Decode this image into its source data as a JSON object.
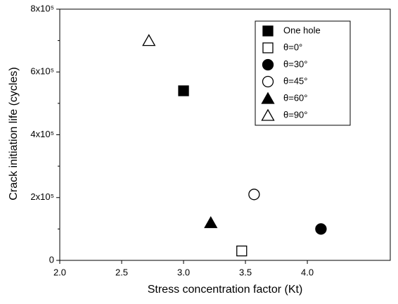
{
  "chart_data": {
    "type": "scatter",
    "x_label": "Stress concentration factor (Kt)",
    "y_label": "Crack initiation life (cycles)",
    "xlim": [
      2.0,
      4.67
    ],
    "xticks": [
      {
        "value": 2,
        "label": "2.0"
      },
      2.5,
      {
        "value": 3,
        "label": "3.0"
      },
      3.5,
      {
        "value": 4,
        "label": "4.0"
      }
    ],
    "ylim": [
      0,
      800000
    ],
    "yticks": [
      0,
      {
        "value": 200000,
        "label": "2x10⁵"
      },
      {
        "value": 400000,
        "label": "4x10⁵"
      },
      {
        "value": 600000,
        "label": "6x10⁵"
      },
      {
        "value": 800000,
        "label": "8x10⁵"
      }
    ],
    "yminor": [
      100000,
      300000,
      500000,
      700000
    ],
    "legend": "upper right",
    "series": [
      {
        "name": "One hole",
        "color": "#000000",
        "marker": "square",
        "filled": true,
        "x": [
          3.0
        ],
        "values": [
          540000
        ]
      },
      {
        "name": "θ=0°",
        "color": "#000000",
        "marker": "square",
        "filled": false,
        "x": [
          3.47
        ],
        "values": [
          30000
        ]
      },
      {
        "name": "θ=30°",
        "color": "#000000",
        "marker": "circle",
        "filled": true,
        "x": [
          4.11
        ],
        "values": [
          100000
        ]
      },
      {
        "name": "θ=45°",
        "color": "#000000",
        "marker": "circle",
        "filled": false,
        "x": [
          3.57
        ],
        "values": [
          210000
        ]
      },
      {
        "name": "θ=60°",
        "color": "#000000",
        "marker": "triangle",
        "filled": true,
        "x": [
          3.22
        ],
        "values": [
          120000
        ]
      },
      {
        "name": "θ=90°",
        "color": "#000000",
        "marker": "triangle",
        "filled": false,
        "x": [
          2.72
        ],
        "values": [
          700000
        ]
      }
    ]
  }
}
